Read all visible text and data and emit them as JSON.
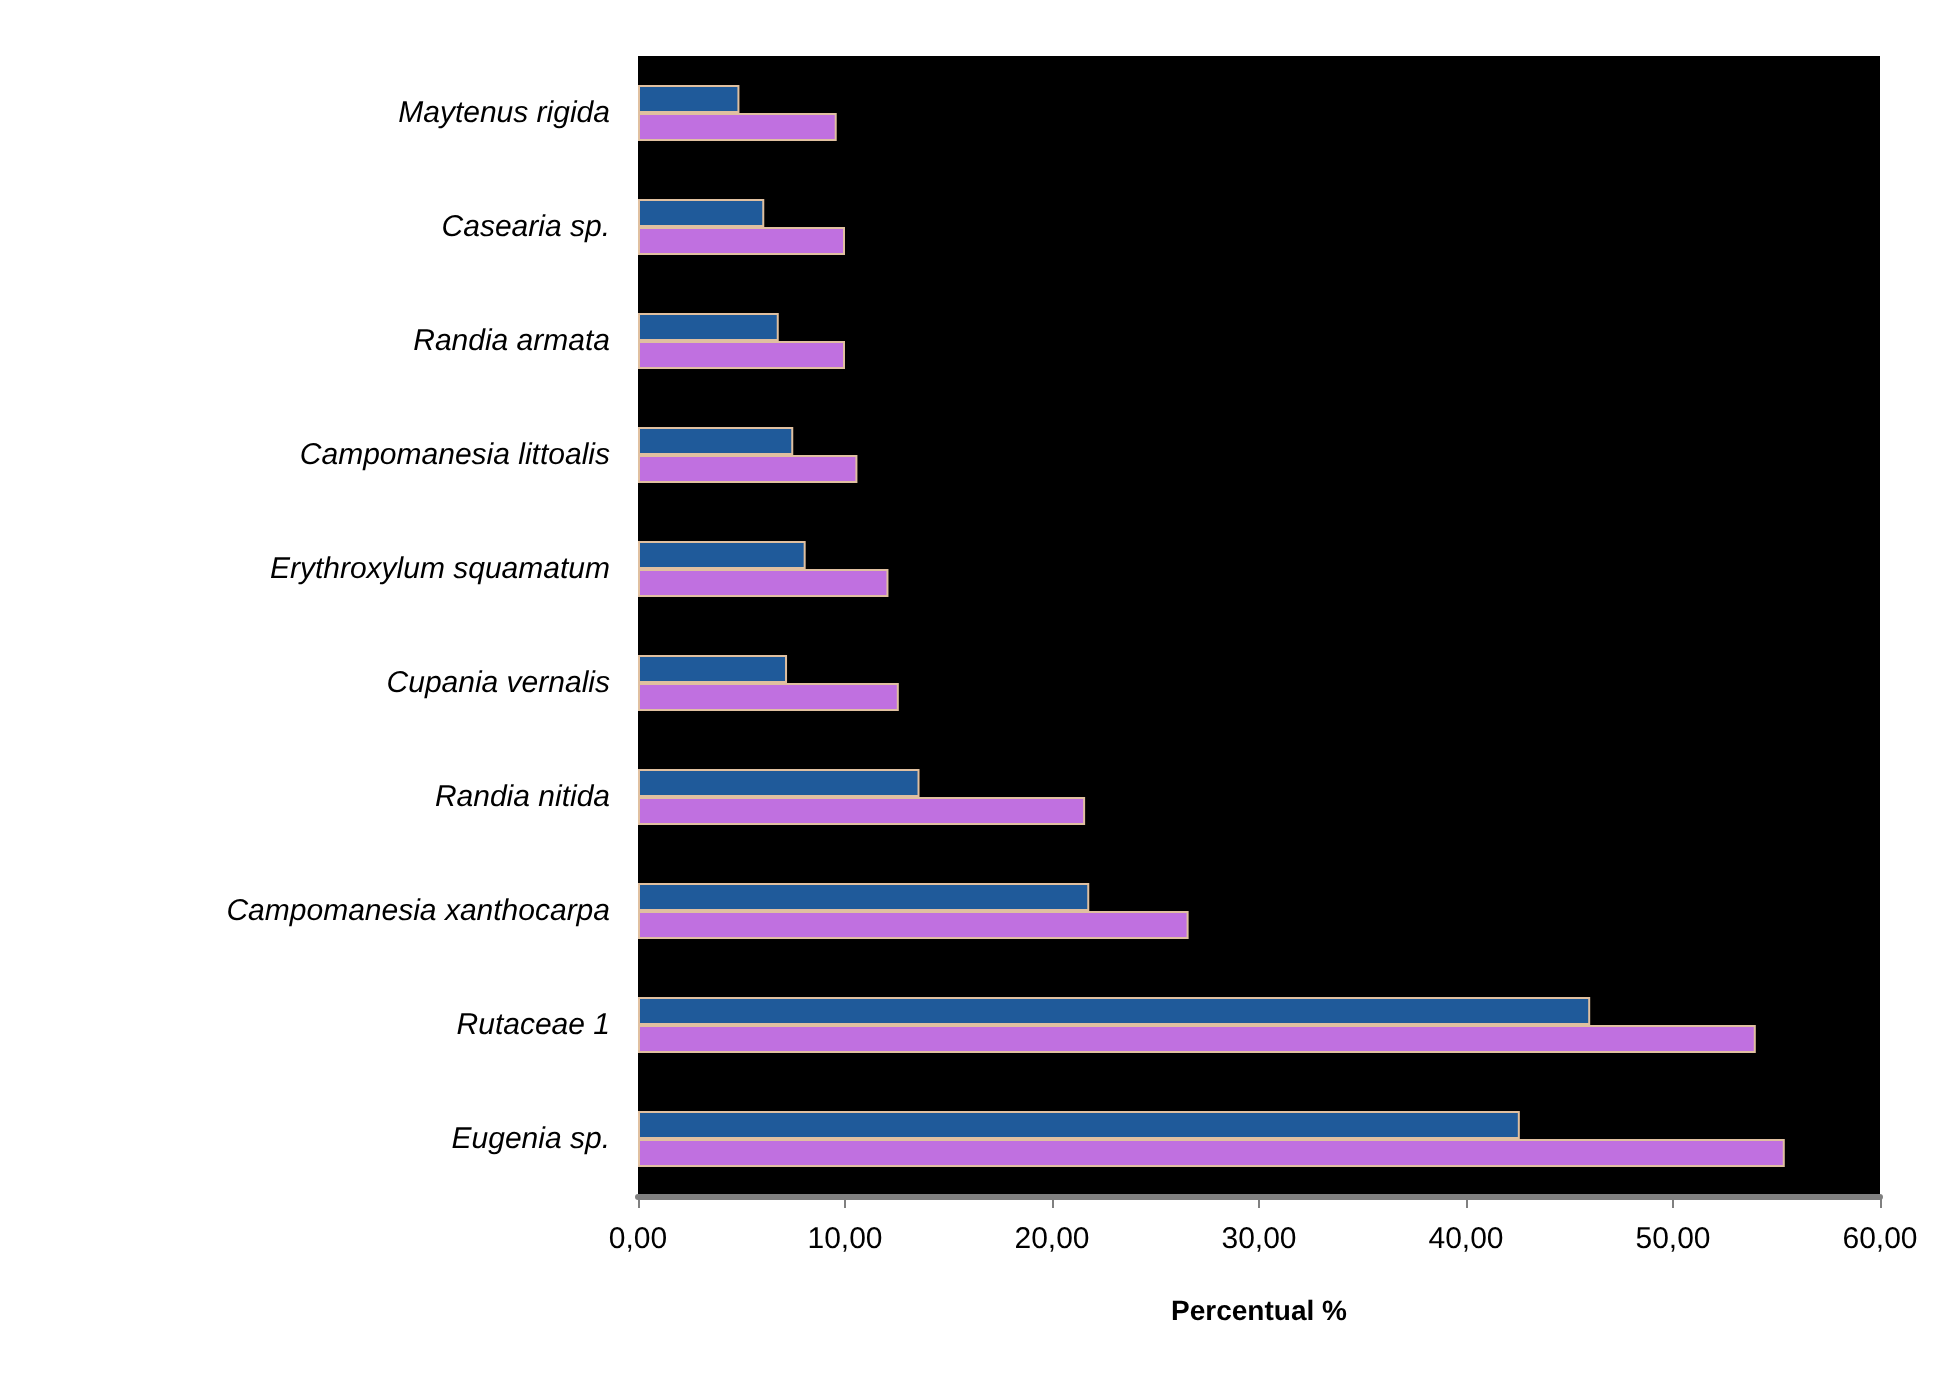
{
  "chart_data": {
    "type": "bar",
    "orientation": "horizontal",
    "xlabel": "Percentual %",
    "categories": [
      "Maytenus rigida",
      "Casearia sp.",
      "Randia armata",
      "Campomanesia littoalis",
      "Erythroxylum squamatum",
      "Cupania vernalis",
      "Randia nitida",
      "Campomanesia xanthocarpa",
      "Rutaceae 1",
      "Eugenia sp."
    ],
    "series": [
      {
        "color": "#1f5a9a",
        "values": [
          4.9,
          6.1,
          6.8,
          7.5,
          8.1,
          7.2,
          13.6,
          21.8,
          46.0,
          42.6
        ]
      },
      {
        "color": "#c070e0",
        "values": [
          9.6,
          10.0,
          10.0,
          10.6,
          12.1,
          12.6,
          21.6,
          26.6,
          54.0,
          55.4
        ]
      }
    ],
    "xlim": [
      0,
      60
    ],
    "xticks": [
      {
        "value": 0,
        "label": "0,00"
      },
      {
        "value": 10,
        "label": "10,00"
      },
      {
        "value": 20,
        "label": "20,00"
      },
      {
        "value": 30,
        "label": "30,00"
      },
      {
        "value": 40,
        "label": "40,00"
      },
      {
        "value": 50,
        "label": "50,00"
      },
      {
        "value": 60,
        "label": "60,00"
      }
    ],
    "grid": false
  }
}
